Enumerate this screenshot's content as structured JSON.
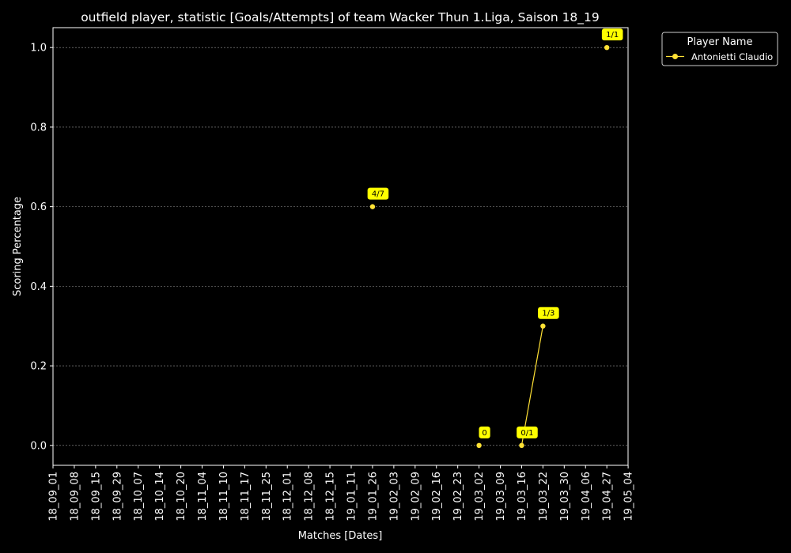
{
  "chart_data": {
    "type": "line",
    "title": "outfield player, statistic [Goals/Attempts] of team Wacker Thun 1.Liga, Saison 18_19",
    "xlabel": "Matches [Dates]",
    "ylabel": "Scoring Percentage",
    "x_ticks": [
      "18_09_01",
      "18_09_08",
      "18_09_15",
      "18_09_29",
      "18_10_07",
      "18_10_14",
      "18_10_20",
      "18_11_04",
      "18_11_10",
      "18_11_17",
      "18_11_25",
      "18_12_01",
      "18_12_08",
      "18_12_15",
      "19_01_11",
      "19_01_26",
      "19_02_03",
      "19_02_09",
      "19_02_16",
      "19_02_23",
      "19_03_02",
      "19_03_09",
      "19_03_16",
      "19_03_22",
      "19_03_30",
      "19_04_06",
      "19_04_27",
      "19_05_04"
    ],
    "y_ticks": [
      "0.0",
      "0.2",
      "0.4",
      "0.6",
      "0.8",
      "1.0"
    ],
    "ylim": [
      -0.05,
      1.05
    ],
    "grid": "horizontal dashed",
    "legend": {
      "title": "Player Name",
      "placement": "outside top-right"
    },
    "series": [
      {
        "name": "Antonietti Claudio",
        "color": "#ffe135",
        "points": [
          {
            "x": "19_01_26",
            "y": 0.6,
            "label": "4/7"
          },
          {
            "x": "19_03_02",
            "y": 0.0,
            "label": "0"
          },
          {
            "x": "19_03_16",
            "y": 0.0,
            "label": "0/1"
          },
          {
            "x": "19_03_22",
            "y": 0.3,
            "label": "1/3"
          },
          {
            "x": "19_04_27",
            "y": 1.0,
            "label": "1/1"
          }
        ],
        "connected_segments": [
          [
            "19_03_16",
            "19_03_22"
          ]
        ]
      }
    ]
  }
}
